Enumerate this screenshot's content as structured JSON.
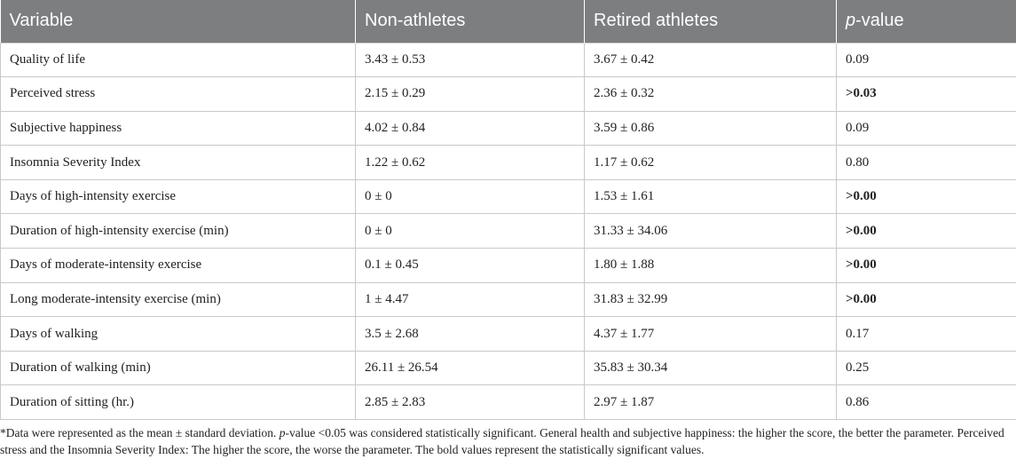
{
  "table": {
    "headers": [
      "Variable",
      "Non-athletes",
      "Retired athletes",
      "-value"
    ],
    "header_p": "p",
    "rows": [
      [
        "Quality of life",
        "3.43 ± 0.53",
        "3.67 ± 0.42",
        "0.09"
      ],
      [
        "Perceived stress",
        "2.15 ± 0.29",
        "2.36 ± 0.32",
        ">0.03"
      ],
      [
        "Subjective happiness",
        "4.02 ± 0.84",
        "3.59 ± 0.86",
        "0.09"
      ],
      [
        "Insomnia Severity Index",
        "1.22 ± 0.62",
        "1.17 ± 0.62",
        "0.80"
      ],
      [
        "Days of high-intensity exercise",
        "0 ± 0",
        "1.53 ± 1.61",
        ">0.00"
      ],
      [
        "Duration of high-intensity exercise (min)",
        "0 ± 0",
        "31.33 ± 34.06",
        ">0.00"
      ],
      [
        "Days of moderate-intensity exercise",
        "0.1 ± 0.45",
        "1.80 ± 1.88",
        ">0.00"
      ],
      [
        "Long moderate-intensity exercise (min)",
        "1 ± 4.47",
        "31.83 ± 32.99",
        ">0.00"
      ],
      [
        "Days of walking",
        "3.5 ± 2.68",
        "4.37 ± 1.77",
        "0.17"
      ],
      [
        "Duration of walking (min)",
        "26.11 ± 26.54",
        "35.83 ± 30.34",
        "0.25"
      ],
      [
        "Duration of sitting (hr.)",
        "2.85 ± 2.83",
        "2.97 ± 1.87",
        "0.86"
      ]
    ]
  },
  "footnote": {
    "part1": "*Data were represented as the mean ± standard deviation. ",
    "p": "p",
    "part2": "-value <0.05 was considered statistically significant. General health and subjective happiness: the higher the score, the better the parameter. Perceived stress and the Insomnia Severity Index: The higher the score, the worse the parameter. The bold values represent the statistically significant values."
  }
}
